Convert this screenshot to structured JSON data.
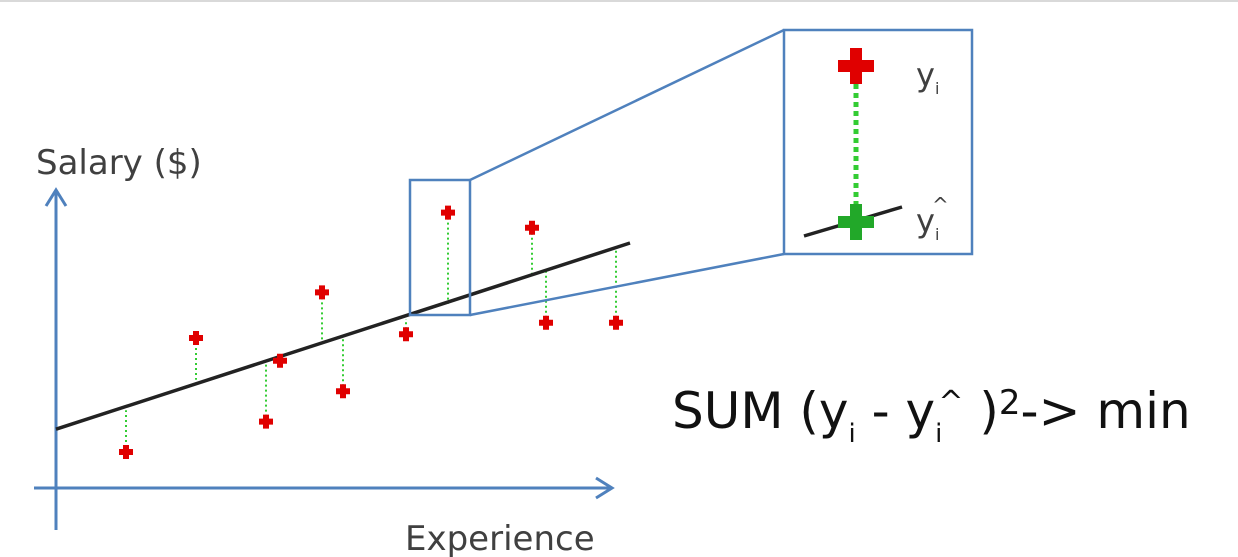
{
  "axes": {
    "y_label": "Salary ($)",
    "x_label": "Experience"
  },
  "callout": {
    "observed_label": "y",
    "observed_sub": "i",
    "predicted_label": "y",
    "predicted_sub": "i",
    "predicted_mark": "^"
  },
  "formula": {
    "prefix": "SUM (y",
    "sub1": "i",
    "middle": " - y",
    "sub2": "i",
    "hat": "^",
    "close": " )",
    "power": "2",
    "suffix": "-> min"
  },
  "chart_data": {
    "type": "scatter",
    "points": [
      {
        "x": 1,
        "y": 1.0,
        "fit": 2.1
      },
      {
        "x": 2,
        "y": 4.0,
        "fit": 2.9
      },
      {
        "x": 3,
        "y": 1.8,
        "fit": 3.3
      },
      {
        "x": 3.2,
        "y": 3.4,
        "fit": 3.4
      },
      {
        "x": 3.8,
        "y": 5.2,
        "fit": 3.8
      },
      {
        "x": 4.1,
        "y": 2.6,
        "fit": 4.0
      },
      {
        "x": 5.0,
        "y": 4.1,
        "fit": 4.5
      },
      {
        "x": 5.6,
        "y": 7.3,
        "fit": 4.9
      },
      {
        "x": 6.8,
        "y": 6.9,
        "fit": 5.6
      },
      {
        "x": 7.0,
        "y": 4.4,
        "fit": 5.8
      },
      {
        "x": 8.0,
        "y": 4.4,
        "fit": 6.4
      }
    ],
    "fit_line": {
      "x": [
        0,
        8.2
      ],
      "y": [
        1.6,
        6.5
      ]
    },
    "colors": {
      "points": "#e00000",
      "predicted": "#22a829",
      "residual": "#33cc33",
      "axis": "#4f81bd",
      "line": "#222222"
    }
  }
}
